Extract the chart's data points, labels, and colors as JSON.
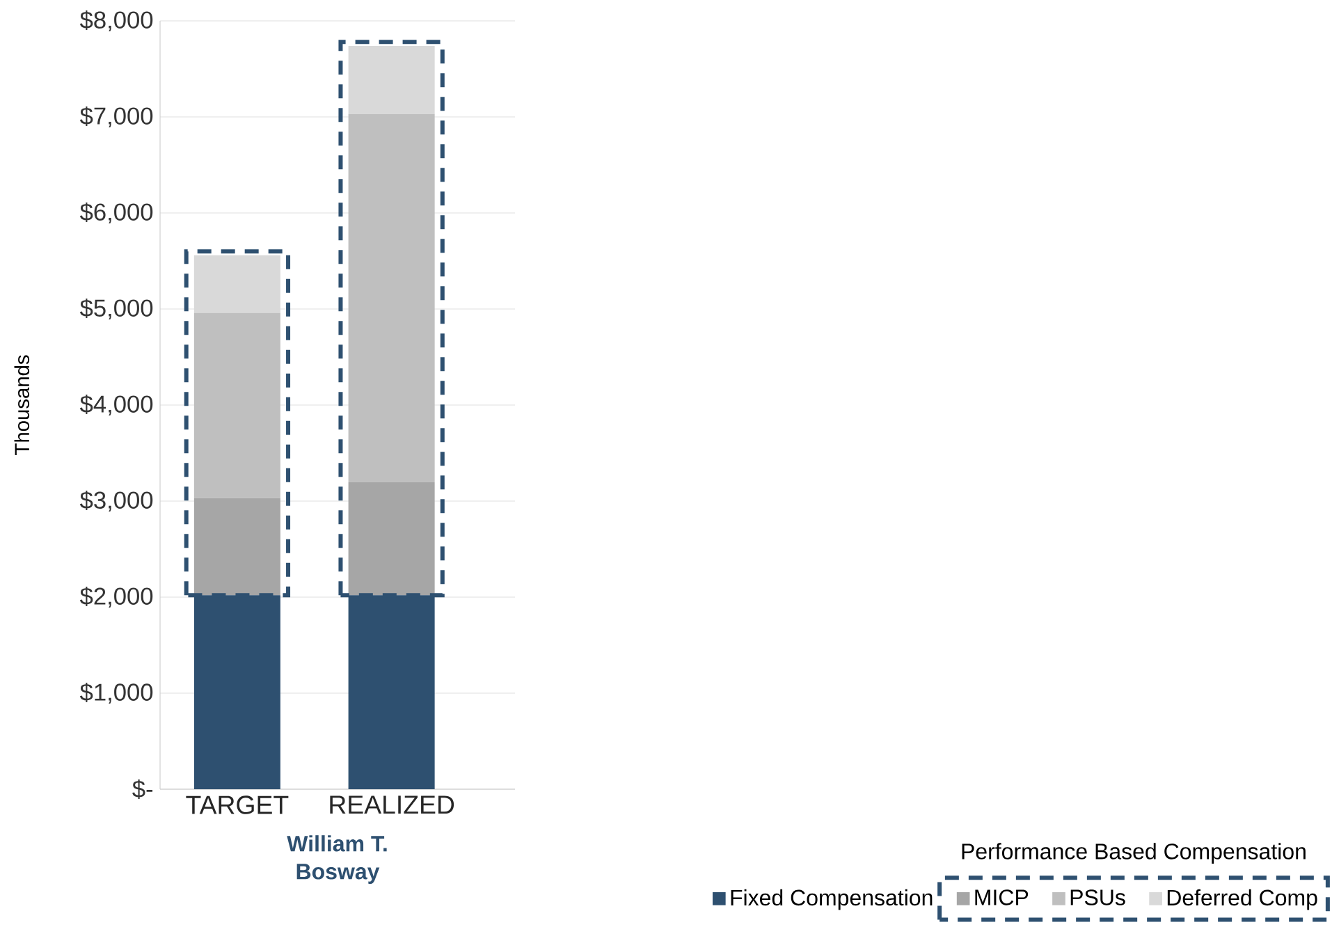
{
  "chart_data": {
    "type": "bar",
    "stacked": true,
    "categories": [
      "TARGET",
      "REALIZED"
    ],
    "xlabel": "William T. Bosway",
    "ylabel": "Thousands",
    "legend_title": "Performance Based Compensation",
    "ylim": [
      0,
      8000
    ],
    "yticks": [
      {
        "value": 0,
        "label": "$-"
      },
      {
        "value": 1000,
        "label": "$1,000"
      },
      {
        "value": 2000,
        "label": "$2,000"
      },
      {
        "value": 3000,
        "label": "$3,000"
      },
      {
        "value": 4000,
        "label": "$4,000"
      },
      {
        "value": 5000,
        "label": "$5,000"
      },
      {
        "value": 6000,
        "label": "$6,000"
      },
      {
        "value": 7000,
        "label": "$7,000"
      },
      {
        "value": 8000,
        "label": "$8,000"
      }
    ],
    "grid": "y",
    "legend": "bottom right",
    "series": [
      {
        "name": "Fixed Compensation",
        "color": "#2e5070",
        "values": [
          2020,
          2020
        ]
      },
      {
        "name": "MICP",
        "color": "#a6a6a6",
        "values": [
          1010,
          1180
        ]
      },
      {
        "name": "PSUs",
        "color": "#bfbfbf",
        "values": [
          1930,
          3830
        ]
      },
      {
        "name": "Deferred Comp",
        "color": "#d9d9d9",
        "values": [
          600,
          710
        ]
      }
    ]
  }
}
